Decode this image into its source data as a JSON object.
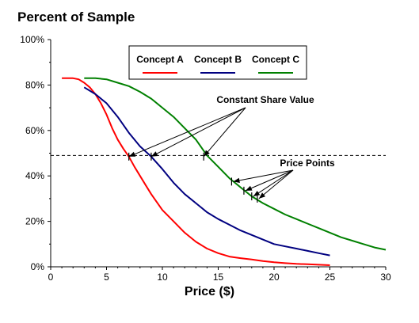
{
  "chart_data": {
    "type": "line",
    "title": "Percent of Sample",
    "xlabel": "Price ($)",
    "ylabel": "",
    "xlim": [
      0,
      30
    ],
    "ylim": [
      0,
      100
    ],
    "x_ticks": [
      0,
      5,
      10,
      15,
      20,
      25,
      30
    ],
    "y_ticks": [
      0,
      20,
      40,
      60,
      80,
      100
    ],
    "y_tick_labels": [
      "0%",
      "20%",
      "40%",
      "60%",
      "80%",
      "100%"
    ],
    "grid": false,
    "legend_position": "top-center",
    "series": [
      {
        "name": "Concept A",
        "color": "#ff0000",
        "x": [
          1,
          1.5,
          2,
          2.5,
          3,
          3.5,
          4,
          4.5,
          5,
          5.5,
          6,
          6.5,
          7,
          7.5,
          8,
          8.5,
          9,
          9.5,
          10,
          11,
          12,
          13,
          14,
          15,
          16,
          17,
          18,
          19,
          20,
          21,
          22,
          23,
          24,
          25
        ],
        "values": [
          83,
          83,
          83,
          82.5,
          81,
          79,
          76,
          72,
          67,
          61,
          56,
          52,
          48.5,
          44,
          40,
          36,
          32,
          28.5,
          25,
          20,
          15,
          11,
          8,
          6,
          4.5,
          3.8,
          3.2,
          2.5,
          2,
          1.6,
          1.3,
          1.1,
          0.9,
          0.7
        ]
      },
      {
        "name": "Concept B",
        "color": "#000080",
        "x": [
          3,
          4,
          5,
          6,
          7,
          8,
          9,
          10,
          11,
          12,
          13,
          14,
          15,
          16,
          17,
          18,
          19,
          20,
          21,
          22,
          23,
          24,
          25
        ],
        "values": [
          79,
          76,
          72,
          66,
          59,
          53,
          48.5,
          43,
          37,
          32,
          28,
          24,
          21,
          18.5,
          16,
          14,
          12,
          10,
          9,
          8,
          7,
          6,
          5
        ]
      },
      {
        "name": "Concept C",
        "color": "#008000",
        "x": [
          3,
          4,
          5,
          6,
          7,
          8,
          9,
          10,
          11,
          12,
          13,
          14,
          15,
          16,
          17,
          18,
          19,
          20,
          21,
          22,
          23,
          24,
          25,
          26,
          27,
          28,
          29,
          30
        ],
        "values": [
          83,
          83,
          82.5,
          81,
          79.5,
          77,
          74,
          70,
          66,
          61,
          56,
          49,
          44,
          39,
          35,
          31,
          28,
          25.5,
          23,
          21,
          19,
          17,
          15,
          13,
          11.5,
          10,
          8.5,
          7.5
        ]
      }
    ],
    "reference_line": {
      "y": 49,
      "style": "dashed"
    },
    "annotations": [
      {
        "text": "Constant Share Value",
        "points": [
          [
            7,
            48.5
          ],
          [
            9,
            48.5
          ],
          [
            13.7,
            48.5
          ]
        ]
      },
      {
        "text": "Price Points",
        "points": [
          [
            16.2,
            37.5
          ],
          [
            17.3,
            33.5
          ],
          [
            18,
            31
          ],
          [
            18.5,
            30
          ]
        ]
      }
    ]
  }
}
